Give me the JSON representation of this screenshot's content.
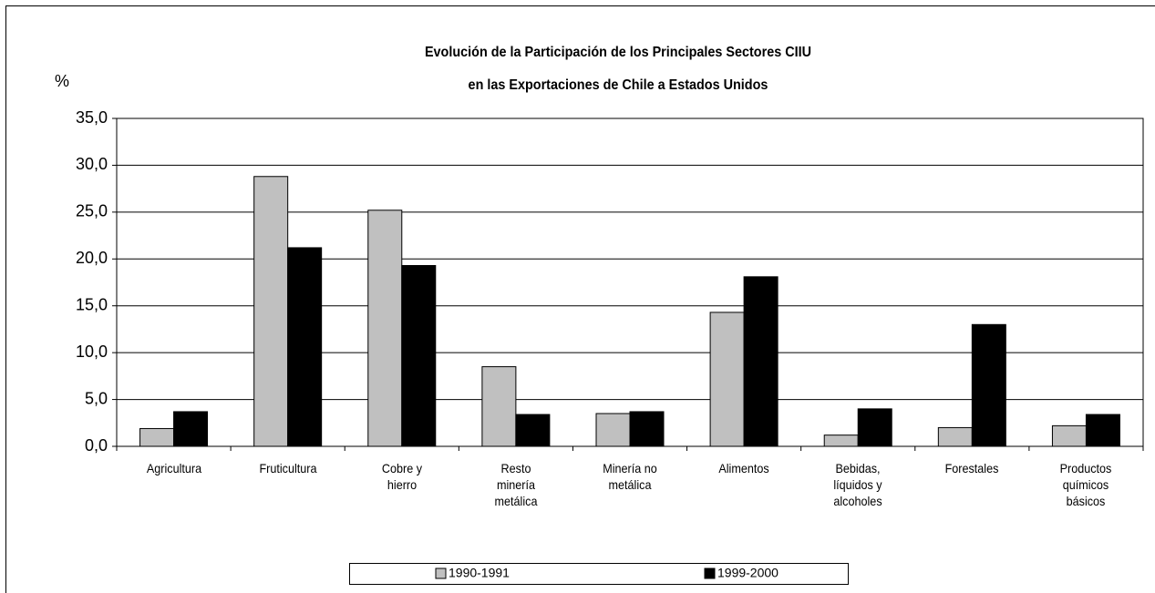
{
  "chart_data": {
    "type": "bar",
    "title": "Evolución de la Participación de los Principales Sectores CIIU",
    "subtitle": "en las Exportaciones de Chile a Estados Unidos",
    "y_label": "%",
    "categories": [
      "Agricultura",
      "Fruticultura",
      "Cobre y hierro",
      "Resto minería metálica",
      "Minería no metálica",
      "Alimentos",
      "Bebidas, líquidos y alcoholes",
      "Forestales",
      "Productos químicos básicos"
    ],
    "series": [
      {
        "name": "1990-1991",
        "color": "#c0c0c0",
        "values": [
          1.9,
          28.8,
          25.2,
          8.5,
          3.5,
          14.3,
          1.2,
          2.0,
          2.2
        ]
      },
      {
        "name": "1999-2000",
        "color": "#000000",
        "values": [
          3.7,
          21.2,
          19.3,
          3.4,
          3.7,
          18.1,
          4.0,
          13.0,
          3.4
        ]
      }
    ],
    "ylim": [
      0,
      35
    ],
    "yticks": [
      {
        "value": 0,
        "label": "0,0"
      },
      {
        "value": 5,
        "label": "5,0"
      },
      {
        "value": 10,
        "label": "10,0"
      },
      {
        "value": 15,
        "label": "15,0"
      },
      {
        "value": 20,
        "label": "20,0"
      },
      {
        "value": 25,
        "label": "25,0"
      },
      {
        "value": 30,
        "label": "30,0"
      },
      {
        "value": 35,
        "label": "35,0"
      }
    ],
    "grid": true,
    "legend": "bottom"
  }
}
